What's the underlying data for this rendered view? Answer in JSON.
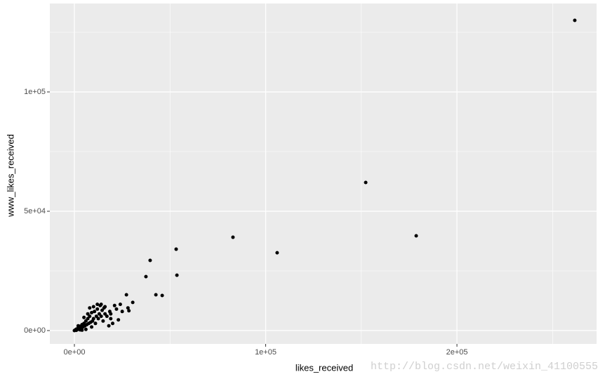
{
  "chart_data": {
    "type": "scatter",
    "x_label": "likes_received",
    "y_label": "www_likes_received",
    "watermark": "http://blog.csdn.net/weixin_41100555",
    "xlim": [
      -12844,
      273000
    ],
    "ylim": [
      -5588,
      137059
    ],
    "xticks": [
      {
        "value": 0,
        "label": "0e+00"
      },
      {
        "value": 100000,
        "label": "1e+05"
      },
      {
        "value": 200000,
        "label": "2e+05"
      }
    ],
    "yticks": [
      {
        "value": 0,
        "label": "0e+00"
      },
      {
        "value": 50000,
        "label": "5e+04"
      },
      {
        "value": 100000,
        "label": "1e+05"
      }
    ],
    "xminor": [
      50000,
      150000,
      250000
    ],
    "yminor": [
      25000,
      75000,
      125000
    ],
    "grid": true,
    "color": "#000000",
    "x": [
      261600,
      152300,
      178700,
      82900,
      106000,
      53200,
      53600,
      39600,
      37400,
      42600,
      45900,
      27200,
      30500,
      0,
      500,
      1000,
      1500,
      2000,
      2500,
      3000,
      3500,
      4000,
      4500,
      5000,
      5500,
      6000,
      6500,
      7000,
      7500,
      8000,
      8500,
      9000,
      9500,
      10000,
      10500,
      11000,
      11500,
      12000,
      12500,
      13000,
      13500,
      14000,
      14500,
      15000,
      15500,
      16000,
      17000,
      18000,
      18500,
      19000,
      20000,
      21000,
      22000,
      23000,
      24000,
      8000,
      10000,
      12000,
      4000,
      6000,
      9000,
      2000,
      3000,
      7000,
      5000,
      1000,
      16000,
      14000,
      19000,
      25000,
      28000,
      28500
    ],
    "y": [
      130000,
      62060,
      39700,
      39100,
      32600,
      34100,
      23200,
      29400,
      22600,
      15000,
      14700,
      15000,
      11800,
      0,
      300,
      600,
      400,
      1200,
      800,
      1800,
      1000,
      2500,
      1500,
      3000,
      2000,
      4000,
      2500,
      5000,
      3000,
      6000,
      3500,
      7500,
      4000,
      5000,
      8000,
      3000,
      6000,
      9000,
      5000,
      7000,
      10500,
      6000,
      8500,
      4000,
      9500,
      7000,
      6000,
      2000,
      8000,
      5000,
      3000,
      10500,
      9000,
      4500,
      11000,
      9500,
      10000,
      11000,
      200,
      500,
      1500,
      2000,
      300,
      7000,
      5500,
      100,
      10000,
      11000,
      7000,
      8000,
      9500,
      8300
    ]
  }
}
